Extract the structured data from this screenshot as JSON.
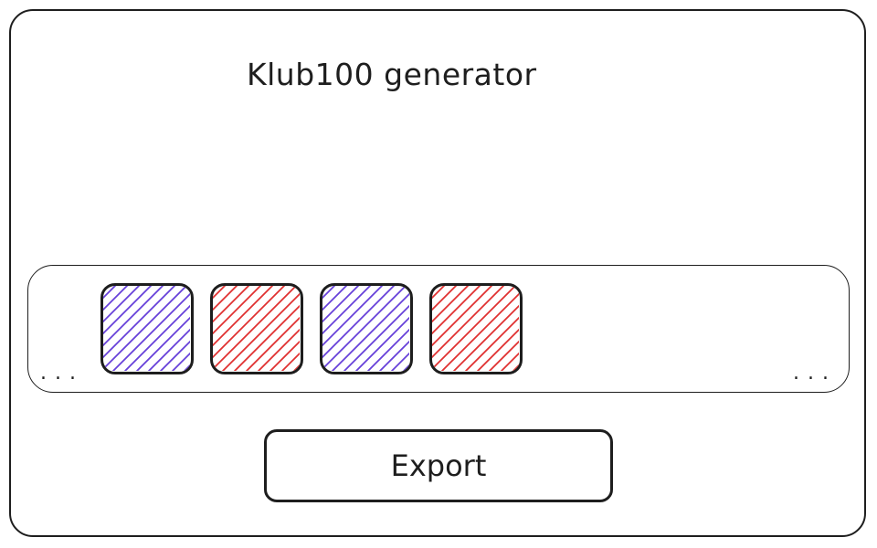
{
  "app": {
    "title": "Klub100 generator"
  },
  "strip": {
    "left_overflow": "...",
    "right_overflow": "...",
    "tiles": [
      {
        "color": "#6741d9"
      },
      {
        "color": "#e03131"
      },
      {
        "color": "#6741d9"
      },
      {
        "color": "#e03131"
      }
    ]
  },
  "actions": {
    "export_label": "Export"
  }
}
